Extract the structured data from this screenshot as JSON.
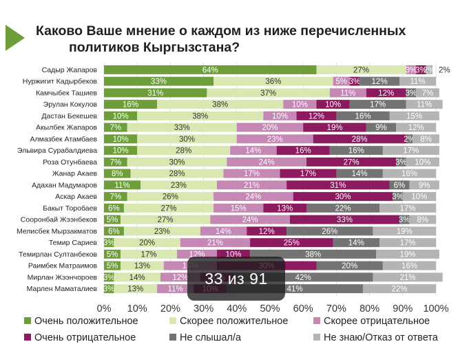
{
  "title": {
    "line1": "Каково Ваше мнение о каждом из ниже перечисленных",
    "line2": "политиков Кыргызстана?"
  },
  "pager": "33 из 91",
  "colors": {
    "accent_triangle": "#6e9e3a",
    "series": [
      "#6e9e3a",
      "#d9e8b0",
      "#c587b4",
      "#8c1a5e",
      "#737373",
      "#b4b4b4"
    ]
  },
  "chart_data": {
    "type": "bar",
    "orientation": "horizontal",
    "stacked": true,
    "percent": true,
    "categories": [
      "Садыр Жапаров",
      "Нуржигит Кадырбеков",
      "Камчыбек Ташиев",
      "Эрулан Кокулов",
      "Дастан Бекешев",
      "Акылбек Жапаров",
      "Алмазбек Атамбаев",
      "Эльвира Сурабалдиева",
      "Роза Отунбаева",
      "Жанар Акаев",
      "Адахан Мадумаров",
      "Аскар Акаев",
      "Бакыт Торобаев",
      "Сооронбай Жээнбеков",
      "Мелисбек Мырзакматов",
      "Темир Сариев",
      "Темирлан Султанбеков",
      "Раимбек Матраимов",
      "Мирлан Жээнчороев",
      "Марлен Маматалиев"
    ],
    "series": [
      {
        "name": "Очень положительное",
        "values": [
          64,
          33,
          31,
          16,
          10,
          7,
          10,
          10,
          7,
          8,
          11,
          7,
          6,
          5,
          6,
          3,
          5,
          5,
          3,
          3
        ]
      },
      {
        "name": "Скорее положительное",
        "values": [
          27,
          36,
          37,
          38,
          38,
          33,
          30,
          28,
          30,
          28,
          23,
          26,
          27,
          27,
          23,
          20,
          17,
          13,
          14,
          13
        ]
      },
      {
        "name": "Скорее отрицательное",
        "values": [
          3,
          5,
          11,
          10,
          10,
          20,
          23,
          14,
          24,
          17,
          21,
          24,
          15,
          24,
          14,
          21,
          12,
          16,
          12,
          11
        ]
      },
      {
        "name": "Очень отрицательное",
        "values": [
          3,
          3,
          12,
          10,
          12,
          19,
          28,
          16,
          27,
          17,
          31,
          30,
          13,
          33,
          12,
          25,
          10,
          30,
          10,
          10
        ]
      },
      {
        "name": "Не слышал/а",
        "values": [
          0,
          12,
          3,
          17,
          16,
          9,
          2,
          16,
          3,
          14,
          6,
          3,
          22,
          3,
          26,
          14,
          38,
          20,
          42,
          41
        ]
      },
      {
        "name": "Не знаю/Отказ от ответа",
        "values": [
          2,
          11,
          7,
          11,
          15,
          12,
          8,
          17,
          10,
          16,
          9,
          10,
          17,
          8,
          19,
          17,
          19,
          16,
          21,
          22
        ]
      }
    ],
    "xlim": [
      0,
      100
    ],
    "xticks": [
      "0%",
      "10%",
      "20%",
      "30%",
      "40%",
      "50%",
      "60%",
      "70%",
      "80%",
      "90%",
      "100%"
    ],
    "legend_position": "bottom"
  }
}
